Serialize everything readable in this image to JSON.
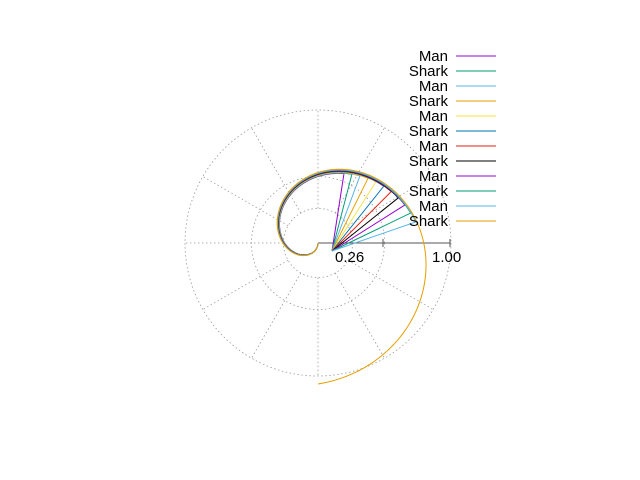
{
  "chart_data": {
    "type": "line",
    "subtype": "polar",
    "grid": true,
    "legend_position": "top-right",
    "r_ticks": [
      {
        "value": 0.26,
        "label": "0.26"
      },
      {
        "value": 1.0,
        "label": "1.00"
      }
    ],
    "r_max": 1.0,
    "radial_grid_step_deg": 30,
    "series": [
      {
        "name": "Man",
        "color": "#9400d3",
        "t_max": 3.5,
        "r_scale": 1.0
      },
      {
        "name": "Shark",
        "color": "#009e73",
        "t_max": 3.6,
        "r_scale": 1.005
      },
      {
        "name": "Man",
        "color": "#56b4e9",
        "t_max": 3.7,
        "r_scale": 1.01
      },
      {
        "name": "Shark",
        "color": "#e69f00",
        "t_max": 3.8,
        "r_scale": 1.015
      },
      {
        "name": "Man",
        "color": "#f0e442",
        "t_max": 3.9,
        "r_scale": 1.02
      },
      {
        "name": "Shark",
        "color": "#0072b2",
        "t_max": 4.0,
        "r_scale": 1.025
      },
      {
        "name": "Man",
        "color": "#e51e10",
        "t_max": 4.1,
        "r_scale": 1.03
      },
      {
        "name": "Shark",
        "color": "#000000",
        "t_max": 4.2,
        "r_scale": 1.035
      },
      {
        "name": "Man",
        "color": "#9400d3",
        "t_max": 4.3,
        "r_scale": 1.04
      },
      {
        "name": "Shark",
        "color": "#009e73",
        "t_max": 4.4,
        "r_scale": 1.045
      },
      {
        "name": "Man",
        "color": "#56b4e9",
        "t_max": 4.5,
        "r_scale": 1.05
      },
      {
        "name": "Shark",
        "color": "#e69f00",
        "t_max": 6.2832,
        "r_scale": 1.06
      }
    ]
  }
}
